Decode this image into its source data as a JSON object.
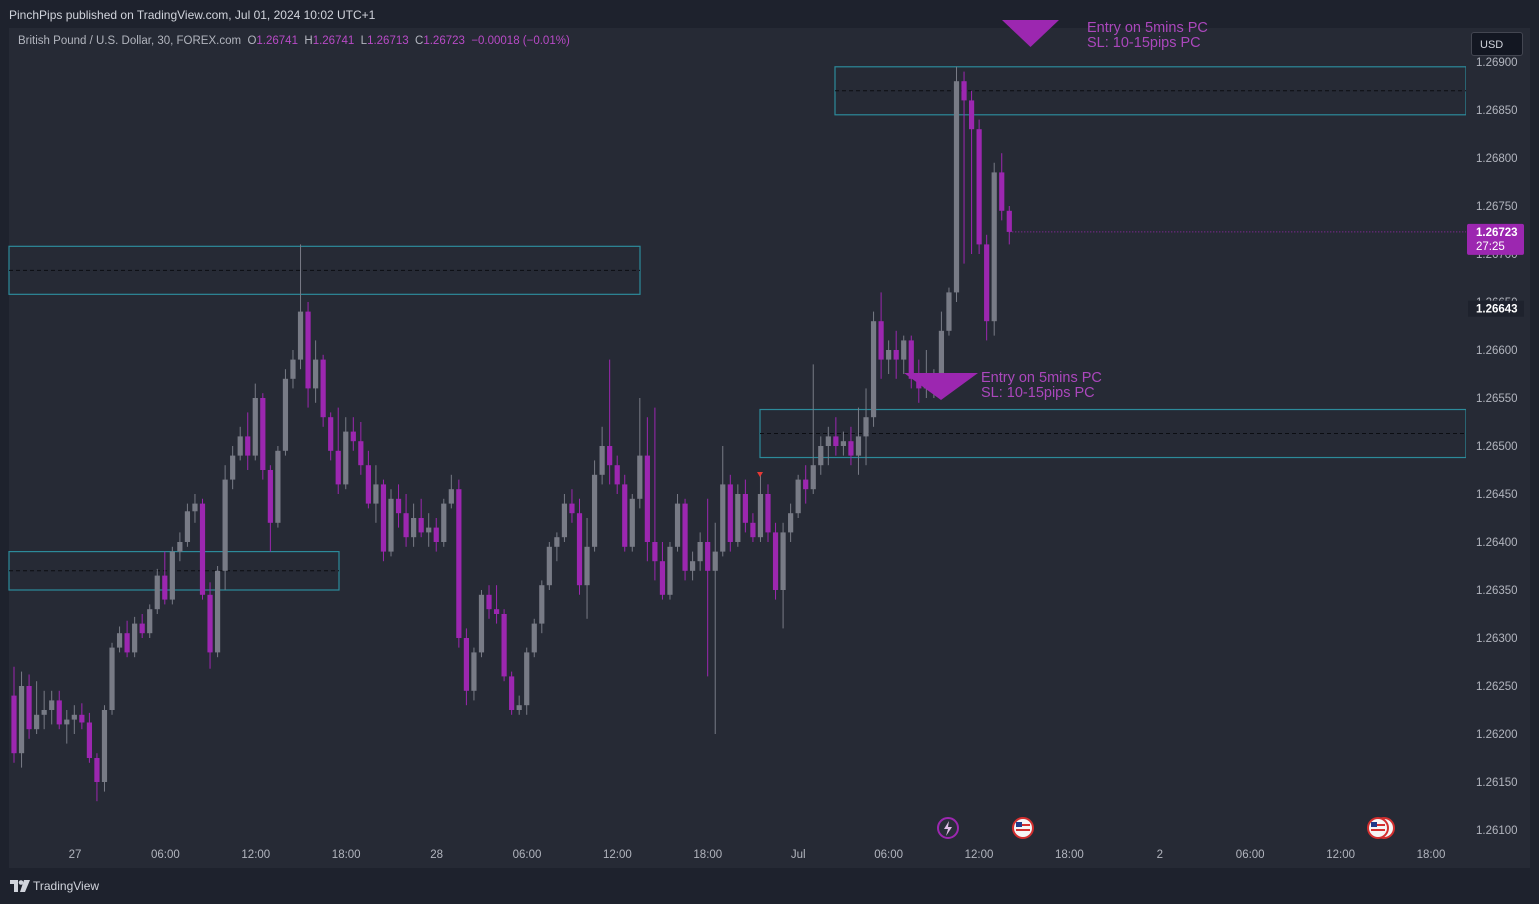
{
  "header": {
    "publisher_line": "PinchPips published on TradingView.com, Jul 01, 2024 10:02 UTC+1"
  },
  "legend": {
    "symbol": "British Pound / U.S. Dollar, 30, FOREX.com",
    "o_label": "O",
    "o_value": "1.26741",
    "h_label": "H",
    "h_value": "1.26741",
    "l_label": "L",
    "l_value": "1.26713",
    "c_label": "C",
    "c_value": "1.26723",
    "change": "−0.00018 (−0.01%)"
  },
  "currency_button": "USD",
  "footer": {
    "brand": "TradingView"
  },
  "colors": {
    "up": "#787b86",
    "down": "#9c27b0",
    "zone": "#2c8a9a",
    "accent": "#9c27b0",
    "annotation": "#ab47bc",
    "background": "#262a35"
  },
  "chart_data": {
    "type": "candlestick",
    "symbol": "GBPUSD",
    "timeframe": "30",
    "y_ticks": [
      "1.26900",
      "1.26850",
      "1.26800",
      "1.26750",
      "1.26700",
      "1.26650",
      "1.26600",
      "1.26550",
      "1.26500",
      "1.26450",
      "1.26400",
      "1.26350",
      "1.26300",
      "1.26250",
      "1.26200",
      "1.26150",
      "1.26100"
    ],
    "ylim": [
      1.2609,
      1.2693
    ],
    "x_ticks": [
      "27",
      "06:00",
      "12:00",
      "18:00",
      "28",
      "06:00",
      "12:00",
      "18:00",
      "Jul",
      "06:00",
      "12:00",
      "18:00",
      "2",
      "06:00",
      "12:00",
      "18:00"
    ],
    "current_price": {
      "price": "1.26723",
      "countdown": "27:25"
    },
    "marked_price": "1.26643",
    "zones": [
      {
        "top": 1.26895,
        "bottom": 1.26845,
        "mid": 1.2687
      },
      {
        "top": 1.26708,
        "bottom": 1.26658,
        "mid": 1.26683
      },
      {
        "top": 1.26538,
        "bottom": 1.26488,
        "mid": 1.26513
      },
      {
        "top": 1.2639,
        "bottom": 1.2635,
        "mid": 1.2637
      }
    ],
    "annotations": [
      {
        "line1": "Entry on 5mins PC",
        "line2": "SL: 10-15pips PC"
      },
      {
        "line1": "Entry on 5mins PC",
        "line2": "SL: 10-15pips PC"
      }
    ],
    "candles": [
      [
        1.2624,
        1.2627,
        1.2617,
        1.2618
      ],
      [
        1.2618,
        1.26265,
        1.26165,
        1.2625
      ],
      [
        1.2625,
        1.26262,
        1.26195,
        1.26205
      ],
      [
        1.26205,
        1.26255,
        1.262,
        1.2622
      ],
      [
        1.2622,
        1.26245,
        1.26205,
        1.26225
      ],
      [
        1.26225,
        1.26245,
        1.2621,
        1.26235
      ],
      [
        1.26235,
        1.26245,
        1.26205,
        1.2621
      ],
      [
        1.2621,
        1.26225,
        1.2619,
        1.26215
      ],
      [
        1.26215,
        1.2623,
        1.262,
        1.2622
      ],
      [
        1.2622,
        1.26232,
        1.26205,
        1.26212
      ],
      [
        1.26212,
        1.26222,
        1.2617,
        1.26175
      ],
      [
        1.26175,
        1.2618,
        1.2613,
        1.2615
      ],
      [
        1.2615,
        1.2623,
        1.2614,
        1.26225
      ],
      [
        1.26225,
        1.26295,
        1.2622,
        1.2629
      ],
      [
        1.2629,
        1.26312,
        1.26285,
        1.26305
      ],
      [
        1.26305,
        1.26318,
        1.2628,
        1.26285
      ],
      [
        1.26285,
        1.26322,
        1.2628,
        1.26315
      ],
      [
        1.26315,
        1.26325,
        1.263,
        1.26305
      ],
      [
        1.26305,
        1.26335,
        1.263,
        1.2633
      ],
      [
        1.2633,
        1.26372,
        1.26325,
        1.26365
      ],
      [
        1.26365,
        1.2639,
        1.26335,
        1.2634
      ],
      [
        1.2634,
        1.26395,
        1.26335,
        1.2639
      ],
      [
        1.2639,
        1.2641,
        1.2638,
        1.264
      ],
      [
        1.264,
        1.2644,
        1.26395,
        1.26432
      ],
      [
        1.26432,
        1.2645,
        1.2642,
        1.2644
      ],
      [
        1.2644,
        1.26445,
        1.2634,
        1.26345
      ],
      [
        1.26345,
        1.26358,
        1.26268,
        1.26285
      ],
      [
        1.26285,
        1.26375,
        1.2628,
        1.2637
      ],
      [
        1.2637,
        1.2648,
        1.2635,
        1.26465
      ],
      [
        1.26465,
        1.265,
        1.26455,
        1.2649
      ],
      [
        1.2649,
        1.2652,
        1.26485,
        1.2651
      ],
      [
        1.2651,
        1.26535,
        1.26475,
        1.2649
      ],
      [
        1.2649,
        1.26565,
        1.26485,
        1.2655
      ],
      [
        1.2655,
        1.26555,
        1.26465,
        1.26475
      ],
      [
        1.26475,
        1.2648,
        1.2639,
        1.2642
      ],
      [
        1.2642,
        1.265,
        1.26415,
        1.26495
      ],
      [
        1.26495,
        1.2658,
        1.2649,
        1.2657
      ],
      [
        1.2657,
        1.266,
        1.2656,
        1.2659
      ],
      [
        1.2659,
        1.2671,
        1.2658,
        1.2664
      ],
      [
        1.2664,
        1.2665,
        1.2654,
        1.2656
      ],
      [
        1.2656,
        1.2661,
        1.26545,
        1.2659
      ],
      [
        1.2659,
        1.26595,
        1.2652,
        1.2653
      ],
      [
        1.2653,
        1.26535,
        1.26485,
        1.26495
      ],
      [
        1.26495,
        1.2654,
        1.2645,
        1.2646
      ],
      [
        1.2646,
        1.2653,
        1.26455,
        1.26515
      ],
      [
        1.26515,
        1.2653,
        1.26495,
        1.26505
      ],
      [
        1.26505,
        1.26525,
        1.2647,
        1.2648
      ],
      [
        1.2648,
        1.26495,
        1.26435,
        1.2644
      ],
      [
        1.2644,
        1.2648,
        1.2642,
        1.2646
      ],
      [
        1.2646,
        1.26465,
        1.2638,
        1.2639
      ],
      [
        1.2639,
        1.26455,
        1.26385,
        1.26445
      ],
      [
        1.26445,
        1.2646,
        1.26415,
        1.2643
      ],
      [
        1.2643,
        1.2645,
        1.26395,
        1.26405
      ],
      [
        1.26405,
        1.2644,
        1.26395,
        1.26425
      ],
      [
        1.26425,
        1.26445,
        1.26405,
        1.2641
      ],
      [
        1.2641,
        1.2643,
        1.26395,
        1.26415
      ],
      [
        1.26415,
        1.26425,
        1.2639,
        1.264
      ],
      [
        1.264,
        1.26445,
        1.26395,
        1.2644
      ],
      [
        1.2644,
        1.2647,
        1.26435,
        1.26455
      ],
      [
        1.26455,
        1.26465,
        1.2629,
        1.263
      ],
      [
        1.263,
        1.2631,
        1.2623,
        1.26245
      ],
      [
        1.26245,
        1.2629,
        1.26235,
        1.26285
      ],
      [
        1.26285,
        1.2635,
        1.2628,
        1.26345
      ],
      [
        1.26345,
        1.26355,
        1.2632,
        1.2633
      ],
      [
        1.2633,
        1.26355,
        1.26315,
        1.26325
      ],
      [
        1.26325,
        1.2633,
        1.26255,
        1.2626
      ],
      [
        1.2626,
        1.26265,
        1.2622,
        1.26225
      ],
      [
        1.26225,
        1.2624,
        1.2622,
        1.2623
      ],
      [
        1.2623,
        1.2629,
        1.2622,
        1.26285
      ],
      [
        1.26285,
        1.2632,
        1.2628,
        1.26315
      ],
      [
        1.26315,
        1.2636,
        1.26305,
        1.26355
      ],
      [
        1.26355,
        1.264,
        1.2635,
        1.26395
      ],
      [
        1.26395,
        1.2641,
        1.2638,
        1.26405
      ],
      [
        1.26405,
        1.2645,
        1.264,
        1.2644
      ],
      [
        1.2644,
        1.26455,
        1.2642,
        1.2643
      ],
      [
        1.2643,
        1.26445,
        1.26345,
        1.26355
      ],
      [
        1.26355,
        1.26425,
        1.2632,
        1.26395
      ],
      [
        1.26395,
        1.26485,
        1.2639,
        1.2647
      ],
      [
        1.2647,
        1.2652,
        1.2646,
        1.265
      ],
      [
        1.265,
        1.2659,
        1.2646,
        1.2648
      ],
      [
        1.2648,
        1.2649,
        1.2645,
        1.2646
      ],
      [
        1.2646,
        1.2647,
        1.2639,
        1.26395
      ],
      [
        1.26395,
        1.2645,
        1.2639,
        1.26445
      ],
      [
        1.26445,
        1.2655,
        1.26435,
        1.2649
      ],
      [
        1.2649,
        1.2653,
        1.2638,
        1.264
      ],
      [
        1.264,
        1.2654,
        1.2636,
        1.2638
      ],
      [
        1.2638,
        1.264,
        1.2634,
        1.26345
      ],
      [
        1.26345,
        1.264,
        1.2634,
        1.26395
      ],
      [
        1.26395,
        1.2645,
        1.2639,
        1.2644
      ],
      [
        1.2644,
        1.26445,
        1.2636,
        1.2637
      ],
      [
        1.2637,
        1.2639,
        1.2636,
        1.2638
      ],
      [
        1.2638,
        1.2641,
        1.2637,
        1.264
      ],
      [
        1.264,
        1.26445,
        1.2626,
        1.2637
      ],
      [
        1.2637,
        1.2642,
        1.262,
        1.2639
      ],
      [
        1.2639,
        1.265,
        1.26385,
        1.2646
      ],
      [
        1.2646,
        1.2647,
        1.2639,
        1.264
      ],
      [
        1.264,
        1.2646,
        1.26395,
        1.2645
      ],
      [
        1.2645,
        1.26465,
        1.2641,
        1.2642
      ],
      [
        1.2642,
        1.2643,
        1.264,
        1.26405
      ],
      [
        1.26405,
        1.2647,
        1.264,
        1.2645
      ],
      [
        1.2645,
        1.2646,
        1.264,
        1.2641
      ],
      [
        1.2641,
        1.2642,
        1.2634,
        1.2635
      ],
      [
        1.2635,
        1.2642,
        1.2631,
        1.2641
      ],
      [
        1.2641,
        1.2644,
        1.264,
        1.2643
      ],
      [
        1.2643,
        1.2647,
        1.26425,
        1.26465
      ],
      [
        1.26465,
        1.2648,
        1.2644,
        1.26455
      ],
      [
        1.26455,
        1.26585,
        1.2645,
        1.2648
      ],
      [
        1.2648,
        1.2651,
        1.2647,
        1.265
      ],
      [
        1.265,
        1.2652,
        1.2648,
        1.2651
      ],
      [
        1.2651,
        1.2653,
        1.2649,
        1.265
      ],
      [
        1.265,
        1.26515,
        1.2649,
        1.26505
      ],
      [
        1.26505,
        1.2652,
        1.2648,
        1.2649
      ],
      [
        1.2649,
        1.2654,
        1.2647,
        1.2651
      ],
      [
        1.2651,
        1.2656,
        1.2648,
        1.2653
      ],
      [
        1.2653,
        1.2664,
        1.2652,
        1.2663
      ],
      [
        1.2663,
        1.2666,
        1.2657,
        1.2659
      ],
      [
        1.2659,
        1.2661,
        1.26575,
        1.266
      ],
      [
        1.266,
        1.2662,
        1.2657,
        1.2659
      ],
      [
        1.2659,
        1.26615,
        1.26575,
        1.2661
      ],
      [
        1.2661,
        1.26615,
        1.2656,
        1.2657
      ],
      [
        1.2657,
        1.2659,
        1.26545,
        1.2656
      ],
      [
        1.2656,
        1.266,
        1.2655,
        1.2657
      ],
      [
        1.2657,
        1.2658,
        1.2655,
        1.2657
      ],
      [
        1.2657,
        1.2664,
        1.2656,
        1.2662
      ],
      [
        1.2662,
        1.26665,
        1.26615,
        1.2666
      ],
      [
        1.2666,
        1.26895,
        1.2665,
        1.2688
      ],
      [
        1.2688,
        1.2689,
        1.2669,
        1.2686
      ],
      [
        1.2686,
        1.2687,
        1.267,
        1.2683
      ],
      [
        1.2683,
        1.2684,
        1.267,
        1.2671
      ],
      [
        1.2671,
        1.2672,
        1.2661,
        1.2663
      ],
      [
        1.2663,
        1.26795,
        1.26615,
        1.26785
      ],
      [
        1.26785,
        1.26805,
        1.26735,
        1.26745
      ],
      [
        1.26745,
        1.2675,
        1.2671,
        1.26723
      ]
    ]
  }
}
